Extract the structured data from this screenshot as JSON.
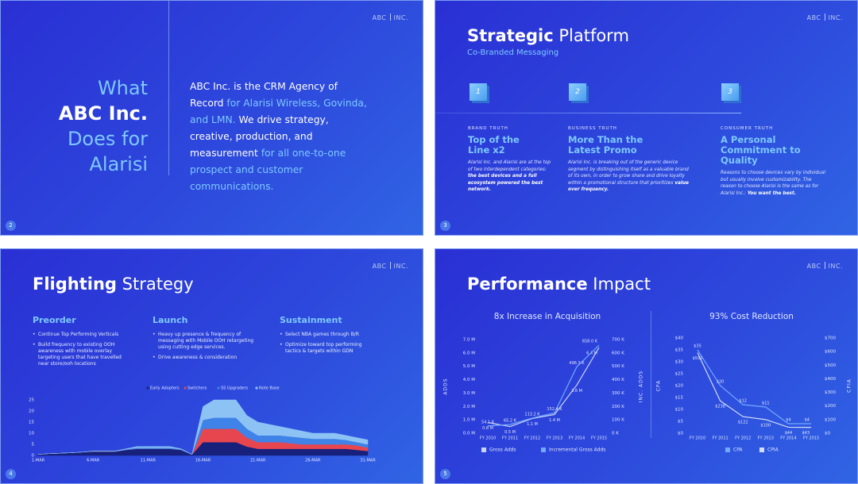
{
  "logo": [
    "ABC",
    "INC."
  ],
  "slides": [
    {
      "page": "2",
      "heading": [
        "What",
        "ABC Inc.",
        "Does for",
        "Alarisi"
      ],
      "body": [
        "ABC Inc. is the CRM Agency of Record",
        "for Alarisi Wireless, Govinda, and LMN.",
        "We drive strategy, creative, production, and measurement",
        "for all one-to-one prospect and customer communications."
      ]
    },
    {
      "page": "3",
      "title": [
        "Strategic",
        "Platform"
      ],
      "subtitle": "Co-Branded Messaging",
      "columns": [
        {
          "number": "1",
          "label": "BRAND TRUTH",
          "heading": "Top of the Line x2",
          "body": [
            "Alarisi Inc. and Alarisi are at the top of two interdependent categories:",
            "the best devices and a full ecosystem  powered the best network."
          ]
        },
        {
          "number": "2",
          "label": "BUSINESS TRUTH",
          "heading": "More Than the Latest Promo",
          "body": [
            "Alarisi Inc. is breaking out of the generic  device segment by distinguishing itself as a valuable brand of its own, in order to grow share and drive loyalty within a promotional structure that prioritizes",
            "value over frequency."
          ]
        },
        {
          "number": "3",
          "label": "CONSUMER TRUTH",
          "heading": "A Personal Commitment to Quality",
          "body": [
            "Reasons to choose devices vary by individual but usually involve customizability. The reason to choose Alarisi is the same as for Alarisi Inc.:",
            "You want the best."
          ]
        }
      ]
    },
    {
      "page": "4",
      "title": [
        "Flighting",
        "Strategy"
      ],
      "columns": [
        {
          "heading": "Preorder",
          "bullets": [
            "Continue Top Performing Verticals",
            "Build frequency to existing OOH awareness with mobile overlay targeting users that have travelled near store/ooh locations"
          ]
        },
        {
          "heading": "Launch",
          "bullets": [
            "Heavy up presence & frequency of messaging with Mobile OOH retargeting using cutting edge services.",
            "Drive  awareness & consideration"
          ]
        },
        {
          "heading": "Sustainment",
          "bullets": [
            "Select NBA games through B/R",
            "Optimize toward top performing tactics & targets within GDN"
          ]
        }
      ]
    },
    {
      "page": "5",
      "title": [
        "Performance",
        "Impact"
      ]
    }
  ],
  "chart_data": [
    {
      "type": "area",
      "categories": [
        "1-MAR",
        null,
        null,
        null,
        null,
        "6-MAR",
        null,
        null,
        null,
        null,
        "11-MAR",
        null,
        null,
        null,
        null,
        "16-MAR",
        null,
        null,
        null,
        null,
        "21-MAR",
        null,
        null,
        null,
        null,
        "26-MAR",
        null,
        null,
        null,
        null,
        "31-MAR"
      ],
      "ylim": [
        0,
        25
      ],
      "yticks": [
        0,
        5,
        10,
        15,
        20,
        25
      ],
      "series": [
        {
          "name": "Early Adopters",
          "color": "#17217c",
          "values": [
            0.5,
            0.8,
            1,
            1.2,
            1.5,
            1.8,
            1.8,
            1.8,
            2.5,
            3,
            3,
            3,
            3,
            2.5,
            0.4,
            6,
            6,
            6,
            6,
            4,
            3,
            3,
            3,
            3,
            3,
            3,
            3,
            3,
            3,
            2.5,
            2
          ]
        },
        {
          "name": "Switchers",
          "color": "#e8464f",
          "values": [
            0,
            0,
            0,
            0,
            0,
            0,
            0,
            0,
            0,
            0,
            0,
            0,
            0,
            0,
            0,
            6,
            6,
            6,
            6,
            4,
            3,
            3,
            3,
            2.5,
            2,
            2,
            2,
            2,
            2,
            2,
            1.5
          ]
        },
        {
          "name": "SS Upgraders",
          "color": "#3f82e8",
          "values": [
            0,
            0,
            0,
            0,
            0,
            0.1,
            0.1,
            0.1,
            0.3,
            0.5,
            0.5,
            0.5,
            0.5,
            0.3,
            0.1,
            4,
            5,
            5,
            5,
            4,
            3,
            3,
            3,
            3,
            3,
            2.5,
            2.5,
            2.5,
            2,
            1.5,
            1.5
          ]
        },
        {
          "name": "Note Base",
          "color": "#8cc2f4",
          "values": [
            0,
            0,
            0,
            0,
            0,
            0.1,
            0.1,
            0.1,
            0.2,
            0.5,
            0.5,
            0.5,
            0.5,
            0.2,
            0,
            6,
            8,
            8,
            8,
            6,
            6,
            5,
            4,
            3.5,
            3,
            2.5,
            2.5,
            2.5,
            2,
            2,
            2
          ]
        }
      ]
    },
    {
      "type": "line",
      "title": "8x Increase in Acquisition",
      "categories": [
        "FY 2010",
        "FY 2011",
        "FY 2012",
        "FY 2013",
        "FY 2014",
        "FY 2015"
      ],
      "ylabel": "ADDS",
      "y2label": "INC. ADDS",
      "ylim": [
        0,
        7
      ],
      "yticks": [
        {
          "value": 0,
          "label": "0.0 M"
        },
        {
          "value": 1,
          "label": "1.0 M"
        },
        {
          "value": 2,
          "label": "2.0 M"
        },
        {
          "value": 3,
          "label": "3.0 M"
        },
        {
          "value": 4,
          "label": "4.0 M"
        },
        {
          "value": 5,
          "label": "5.0 M"
        },
        {
          "value": 6,
          "label": "6.0 M"
        },
        {
          "value": 7,
          "label": "7.0 M"
        }
      ],
      "y2lim": [
        0,
        700
      ],
      "y2ticks": [
        {
          "value": 0,
          "label": "0 K"
        },
        {
          "value": 100,
          "label": "100 K"
        },
        {
          "value": 200,
          "label": "200 K"
        },
        {
          "value": 300,
          "label": "300 K"
        },
        {
          "value": 400,
          "label": "400 K"
        },
        {
          "value": 500,
          "label": "500 K"
        },
        {
          "value": 600,
          "label": "600 K"
        },
        {
          "value": 700,
          "label": "700 K"
        }
      ],
      "series": [
        {
          "name": "Gross Adds",
          "color": "#c9d4f2",
          "values": [
            0.8,
            0.5,
            1.1,
            1.4,
            3.6,
            6.4
          ],
          "value_labels": [
            "0.8 M",
            "0.5 M",
            "1.1 M",
            "1.4 M",
            "3.6 M",
            "6.4 M"
          ]
        },
        {
          "name": "Incremental Gross Adds",
          "color": "#72a9ff",
          "axis": "y2",
          "values": [
            54.1,
            65.2,
            113.2,
            152.4,
            496.3,
            658.0
          ],
          "value_labels": [
            "54.1 K",
            "65.2 K",
            "113.2 K",
            "152.4 K",
            "496.3 K",
            "658.0 K"
          ]
        }
      ]
    },
    {
      "type": "line",
      "title": "93% Cost Reduction",
      "categories": [
        "FY 2010",
        "FY 2011",
        "FY 2012",
        "FY 2013",
        "FY 2014",
        "FY 2015"
      ],
      "ylabel": "CPA",
      "y2label": "CPIA",
      "ylim": [
        0,
        40
      ],
      "yticks": [
        {
          "value": 0,
          "label": "$0"
        },
        {
          "value": 5,
          "label": "$5"
        },
        {
          "value": 10,
          "label": "$10"
        },
        {
          "value": 15,
          "label": "$15"
        },
        {
          "value": 20,
          "label": "$20"
        },
        {
          "value": 25,
          "label": "$25"
        },
        {
          "value": 30,
          "label": "$30"
        },
        {
          "value": 35,
          "label": "$35"
        },
        {
          "value": 40,
          "label": "$40"
        }
      ],
      "y2lim": [
        0,
        700
      ],
      "y2ticks": [
        {
          "value": 0,
          "label": "$0"
        },
        {
          "value": 100,
          "label": "$100"
        },
        {
          "value": 200,
          "label": "$200"
        },
        {
          "value": 300,
          "label": "$300"
        },
        {
          "value": 400,
          "label": "$400"
        },
        {
          "value": 500,
          "label": "$500"
        },
        {
          "value": 600,
          "label": "$600"
        },
        {
          "value": 700,
          "label": "$700"
        }
      ],
      "series": [
        {
          "name": "CPA",
          "color": "#72a9ff",
          "values": [
            35,
            20,
            12,
            11,
            4,
            4
          ],
          "value_labels": [
            "$35",
            "$20",
            "$12",
            "$11",
            "$4",
            "$4"
          ]
        },
        {
          "name": "CPIA",
          "color": "#d3ddf5",
          "axis": "y2",
          "values": [
            592,
            238,
            122,
            100,
            44,
            43
          ],
          "value_labels": [
            "$592",
            "$238",
            "$122",
            "$100",
            "$44",
            "$43"
          ]
        }
      ]
    }
  ]
}
